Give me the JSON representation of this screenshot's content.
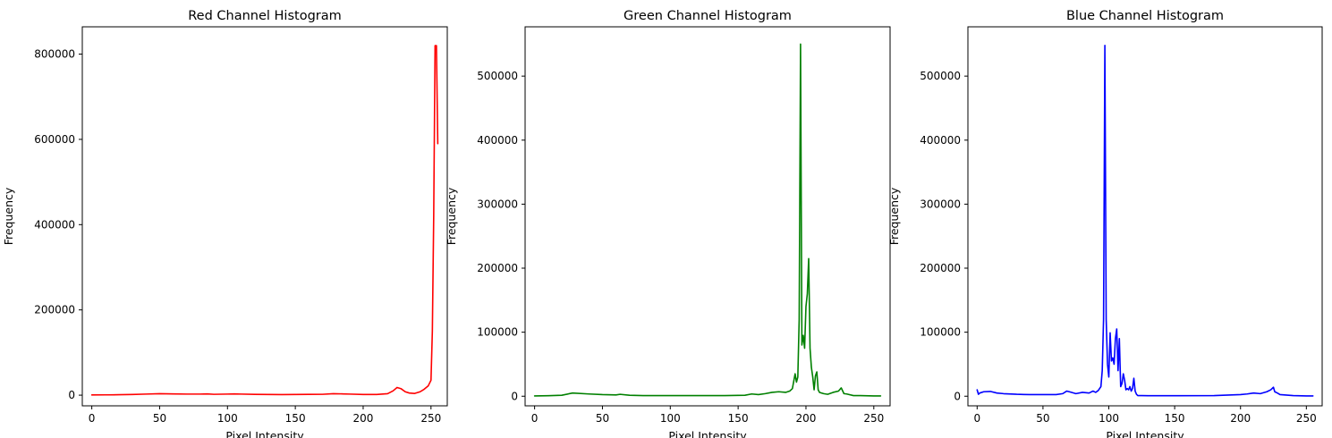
{
  "chart_data": [
    {
      "type": "line",
      "title": "Red Channel Histogram",
      "xlabel": "Pixel Intensity",
      "ylabel": "Frequency",
      "xlim": [
        -7,
        262
      ],
      "ylim": [
        -25000,
        864000
      ],
      "xticks": [
        0,
        50,
        100,
        150,
        200,
        250
      ],
      "yticks": [
        0,
        200000,
        400000,
        600000,
        800000
      ],
      "grid": false,
      "series": [
        {
          "color": "#ff0000",
          "x": [
            0,
            10,
            20,
            30,
            40,
            50,
            60,
            70,
            80,
            85,
            90,
            100,
            105,
            110,
            120,
            130,
            140,
            150,
            160,
            170,
            178,
            185,
            190,
            200,
            210,
            218,
            222,
            225,
            228,
            231,
            234,
            238,
            242,
            245,
            248,
            250,
            251,
            252,
            253,
            254,
            255
          ],
          "values": [
            500,
            700,
            1000,
            1500,
            2500,
            3500,
            3000,
            2500,
            2500,
            3000,
            2000,
            2500,
            3000,
            2500,
            1800,
            1500,
            1300,
            1500,
            1800,
            2000,
            3500,
            3000,
            2500,
            1500,
            1500,
            3500,
            10000,
            18000,
            15000,
            8000,
            5000,
            4000,
            8000,
            14000,
            22000,
            35000,
            150000,
            420000,
            820000,
            820000,
            590000
          ]
        }
      ]
    },
    {
      "type": "line",
      "title": "Green Channel Histogram",
      "xlabel": "Pixel Intensity",
      "ylabel": "Frequency",
      "xlim": [
        -7,
        262
      ],
      "ylim": [
        -15000,
        577000
      ],
      "xticks": [
        0,
        50,
        100,
        150,
        200,
        250
      ],
      "yticks": [
        0,
        100000,
        200000,
        300000,
        400000,
        500000
      ],
      "grid": false,
      "series": [
        {
          "color": "#008000",
          "x": [
            0,
            10,
            20,
            28,
            40,
            50,
            60,
            63,
            70,
            80,
            100,
            120,
            140,
            155,
            160,
            165,
            170,
            175,
            180,
            185,
            188,
            190,
            192,
            193,
            194,
            195,
            196,
            197,
            198,
            199,
            200,
            201,
            202,
            203,
            204,
            205,
            206,
            207,
            208,
            209,
            210,
            213,
            216,
            220,
            224,
            226,
            228,
            230,
            235,
            240,
            250,
            255
          ],
          "values": [
            500,
            800,
            1500,
            5000,
            3500,
            2500,
            2000,
            3000,
            1500,
            1000,
            1000,
            1000,
            1000,
            1500,
            3500,
            2500,
            4000,
            6000,
            7000,
            6000,
            8000,
            12000,
            35000,
            22000,
            30000,
            120000,
            550000,
            80000,
            95000,
            75000,
            140000,
            160000,
            215000,
            75000,
            45000,
            30000,
            10000,
            32000,
            38000,
            10000,
            6000,
            4000,
            3000,
            6000,
            8000,
            13000,
            4000,
            3500,
            1000,
            1000,
            500,
            500
          ]
        }
      ]
    },
    {
      "type": "line",
      "title": "Blue Channel Histogram",
      "xlabel": "Pixel Intensity",
      "ylabel": "Frequency",
      "xlim": [
        -7,
        262
      ],
      "ylim": [
        -15000,
        577000
      ],
      "xticks": [
        0,
        50,
        100,
        150,
        200,
        250
      ],
      "yticks": [
        0,
        100000,
        200000,
        300000,
        400000,
        500000
      ],
      "grid": false,
      "series": [
        {
          "color": "#0000ff",
          "x": [
            0,
            1,
            2,
            5,
            10,
            15,
            20,
            30,
            40,
            50,
            60,
            65,
            68,
            70,
            75,
            80,
            85,
            88,
            90,
            92,
            94,
            95,
            96,
            97,
            98,
            99,
            100,
            101,
            102,
            103,
            104,
            105,
            106,
            107,
            108,
            109,
            110,
            111,
            112,
            113,
            114,
            115,
            116,
            117,
            118,
            119,
            120,
            121,
            122,
            125,
            130,
            150,
            180,
            200,
            205,
            210,
            215,
            220,
            223,
            225,
            226,
            228,
            230,
            240,
            250,
            255
          ],
          "values": [
            10000,
            3000,
            5000,
            7000,
            7500,
            5000,
            4000,
            3000,
            2500,
            2500,
            2500,
            4000,
            8000,
            7000,
            4000,
            6000,
            5000,
            8000,
            6000,
            9000,
            15000,
            40000,
            120000,
            548000,
            120000,
            50000,
            30000,
            99000,
            55000,
            60000,
            50000,
            90000,
            105000,
            40000,
            90000,
            15000,
            20000,
            35000,
            25000,
            10000,
            12000,
            10000,
            15000,
            8000,
            12000,
            28000,
            8000,
            3000,
            1000,
            1000,
            800,
            800,
            1000,
            2500,
            3500,
            5000,
            4000,
            7000,
            10000,
            14000,
            7000,
            5000,
            2500,
            1000,
            500,
            500
          ]
        }
      ]
    }
  ]
}
